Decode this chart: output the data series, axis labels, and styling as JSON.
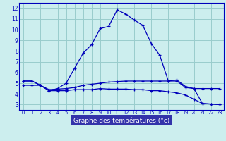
{
  "line1_x": [
    0,
    1,
    2,
    3,
    4,
    5,
    6,
    7,
    8,
    9,
    10,
    11,
    12,
    13,
    14,
    15,
    16,
    17,
    18,
    19,
    20,
    21,
    22,
    23
  ],
  "line1_y": [
    5.2,
    5.2,
    4.8,
    4.3,
    4.5,
    5.0,
    6.4,
    7.8,
    8.6,
    10.1,
    10.3,
    11.85,
    11.45,
    10.9,
    10.4,
    8.7,
    7.6,
    5.2,
    5.3,
    4.7,
    4.5,
    3.1,
    3.05,
    3.0
  ],
  "line2_x": [
    0,
    1,
    2,
    3,
    4,
    5,
    6,
    7,
    8,
    9,
    10,
    11,
    12,
    13,
    14,
    15,
    16,
    17,
    18,
    19,
    20,
    21,
    22,
    23
  ],
  "line2_y": [
    4.8,
    4.8,
    4.8,
    4.4,
    4.45,
    4.5,
    4.6,
    4.8,
    4.9,
    5.0,
    5.1,
    5.15,
    5.2,
    5.2,
    5.2,
    5.2,
    5.2,
    5.2,
    5.2,
    4.6,
    4.5,
    4.5,
    4.5,
    4.5
  ],
  "line3_x": [
    0,
    1,
    2,
    3,
    4,
    5,
    6,
    7,
    8,
    9,
    10,
    11,
    12,
    13,
    14,
    15,
    16,
    17,
    18,
    19,
    20,
    21,
    22,
    23
  ],
  "line3_y": [
    5.2,
    5.2,
    4.8,
    4.3,
    4.3,
    4.3,
    4.4,
    4.4,
    4.4,
    4.5,
    4.45,
    4.45,
    4.45,
    4.4,
    4.4,
    4.3,
    4.3,
    4.2,
    4.1,
    3.9,
    3.5,
    3.1,
    3.05,
    3.0
  ],
  "line_color": "#0000bb",
  "bg_color": "#cceeee",
  "grid_color": "#99cccc",
  "axis_label_bg": "#3333aa",
  "xlabel": "Graphe des températures (°c)",
  "xlim": [
    -0.5,
    23.5
  ],
  "ylim": [
    2.5,
    12.5
  ],
  "yticks": [
    3,
    4,
    5,
    6,
    7,
    8,
    9,
    10,
    11,
    12
  ],
  "xticks": [
    0,
    1,
    2,
    3,
    4,
    5,
    6,
    7,
    8,
    9,
    10,
    11,
    12,
    13,
    14,
    15,
    16,
    17,
    18,
    19,
    20,
    21,
    22,
    23
  ]
}
